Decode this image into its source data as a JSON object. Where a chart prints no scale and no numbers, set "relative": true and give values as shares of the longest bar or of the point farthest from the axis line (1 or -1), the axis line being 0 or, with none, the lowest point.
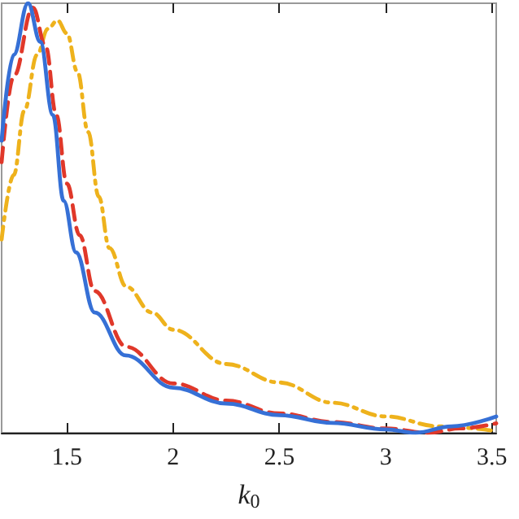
{
  "chart_data": {
    "type": "line",
    "xlabel": "k$_{0}$",
    "relative": true,
    "xlim": [
      1.193,
      3.52
    ],
    "xticks": [
      1.5,
      2,
      2.5,
      3,
      3.5
    ],
    "grid": false,
    "marker": "none",
    "series": [
      {
        "color": "#eeb21c",
        "line_style": "dashdot",
        "x": [
          1.193,
          1.25,
          1.3,
          1.36,
          1.41,
          1.456,
          1.5,
          1.55,
          1.6,
          1.65,
          1.7,
          1.78,
          1.9,
          2.0,
          2.25,
          2.5,
          2.75,
          3.0,
          3.25,
          3.52
        ],
        "values": [
          0.45,
          0.6,
          0.75,
          0.88,
          0.94,
          0.96,
          0.93,
          0.84,
          0.7,
          0.55,
          0.43,
          0.34,
          0.28,
          0.24,
          0.16,
          0.117,
          0.07,
          0.038,
          0.015,
          0.004
        ]
      },
      {
        "color": "#e0382a",
        "line_style": "dashed",
        "x": [
          1.193,
          1.25,
          1.34,
          1.4,
          1.45,
          1.5,
          1.56,
          1.63,
          1.78,
          2.0,
          2.25,
          2.5,
          2.75,
          3.0,
          3.2,
          3.35,
          3.52
        ],
        "values": [
          0.63,
          0.83,
          0.99,
          0.9,
          0.74,
          0.58,
          0.46,
          0.33,
          0.2,
          0.115,
          0.075,
          0.045,
          0.025,
          0.01,
          0.0,
          0.01,
          0.022
        ]
      },
      {
        "color": "#3670d6",
        "line_style": "solid",
        "x": [
          1.193,
          1.25,
          1.317,
          1.375,
          1.434,
          1.485,
          1.543,
          1.631,
          1.777,
          2.0,
          2.25,
          2.5,
          2.75,
          3.0,
          3.14,
          3.31,
          3.52
        ],
        "values": [
          0.68,
          0.88,
          1.0,
          0.91,
          0.74,
          0.54,
          0.42,
          0.28,
          0.18,
          0.105,
          0.068,
          0.041,
          0.023,
          0.008,
          0.0,
          0.015,
          0.038
        ]
      }
    ]
  }
}
